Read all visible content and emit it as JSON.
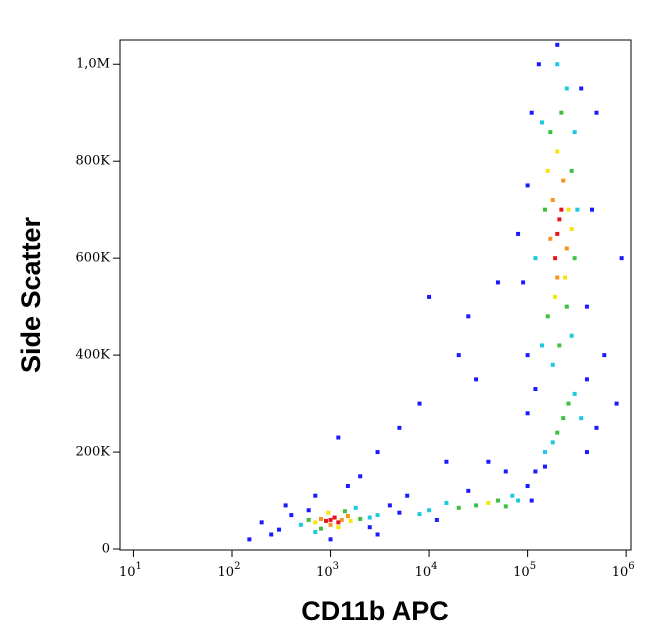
{
  "chart_data": {
    "type": "scatter",
    "xlabel": "CD11b APC",
    "ylabel": "Side Scatter",
    "xscale": "log",
    "xlim": [
      7.3,
      1120000
    ],
    "ylim": [
      -2000,
      1050000
    ],
    "xticks": [
      {
        "value": 10,
        "label": "10",
        "exponent": "1"
      },
      {
        "value": 100,
        "label": "10",
        "exponent": "2"
      },
      {
        "value": 1000,
        "label": "10",
        "exponent": "3"
      },
      {
        "value": 10000,
        "label": "10",
        "exponent": "4"
      },
      {
        "value": 100000,
        "label": "10",
        "exponent": "5"
      },
      {
        "value": 1000000,
        "label": "10",
        "exponent": "6"
      }
    ],
    "yticks": [
      0,
      {
        "value": 200000,
        "label": "200K"
      },
      {
        "value": 400000,
        "label": "400K"
      },
      {
        "value": 600000,
        "label": "600K"
      },
      {
        "value": 800000,
        "label": "800K"
      },
      {
        "value": 1000000,
        "label": "1,0M"
      }
    ],
    "series": [
      {
        "color": "#1a1aff",
        "x": [
          300,
          400,
          250,
          200,
          350,
          4000,
          5000,
          6000,
          12000,
          25000,
          100000,
          120000,
          110000,
          400000,
          500000,
          400000,
          150000,
          100000,
          100000,
          90000,
          100000,
          110000,
          400000,
          450000,
          500000,
          130000,
          350000,
          120000,
          2000,
          3000,
          5000,
          8000,
          20000,
          30000,
          15000,
          1500,
          700,
          150,
          1000,
          3000,
          60000,
          40000,
          600000,
          50000,
          25000,
          200000,
          800000,
          900000,
          80000,
          10000,
          1200,
          600,
          2500
        ],
        "y": [
          40000,
          70000,
          30000,
          55000,
          90000,
          90000,
          75000,
          110000,
          60000,
          120000,
          130000,
          160000,
          100000,
          350000,
          250000,
          200000,
          170000,
          280000,
          400000,
          550000,
          750000,
          900000,
          500000,
          700000,
          900000,
          1000000,
          950000,
          330000,
          150000,
          200000,
          250000,
          300000,
          400000,
          350000,
          180000,
          130000,
          110000,
          20000,
          20000,
          30000,
          160000,
          180000,
          400000,
          550000,
          480000,
          1040000,
          300000,
          600000,
          650000,
          520000,
          230000,
          80000,
          45000
        ]
      },
      {
        "color": "#1ec8e0",
        "x": [
          500,
          2500,
          3000,
          700,
          1800,
          10000,
          8000,
          15000,
          80000,
          70000,
          300000,
          180000,
          150000,
          350000,
          140000,
          300000,
          250000,
          200000,
          120000,
          320000,
          140000,
          280000,
          180000
        ],
        "y": [
          50000,
          65000,
          70000,
          35000,
          85000,
          80000,
          72000,
          95000,
          100000,
          110000,
          320000,
          220000,
          200000,
          270000,
          880000,
          860000,
          950000,
          1000000,
          600000,
          700000,
          420000,
          440000,
          380000
        ]
      },
      {
        "color": "#3fbf3f",
        "x": [
          600,
          2000,
          800,
          1400,
          30000,
          50000,
          60000,
          20000,
          230000,
          260000,
          200000,
          170000,
          280000,
          150000,
          220000,
          300000,
          160000,
          250000,
          210000
        ],
        "y": [
          60000,
          62000,
          42000,
          78000,
          90000,
          100000,
          88000,
          85000,
          270000,
          300000,
          240000,
          860000,
          780000,
          700000,
          900000,
          600000,
          480000,
          500000,
          420000
        ]
      },
      {
        "color": "#f5e50c",
        "x": [
          700,
          1600,
          950,
          1200,
          40000,
          160000,
          260000,
          200000,
          190000,
          240000,
          280000
        ],
        "y": [
          55000,
          58000,
          75000,
          45000,
          95000,
          780000,
          700000,
          820000,
          520000,
          560000,
          660000
        ]
      },
      {
        "color": "#f7941d",
        "x": [
          800,
          1300,
          1000,
          1500,
          180000,
          250000,
          200000,
          230000,
          170000
        ],
        "y": [
          62000,
          60000,
          50000,
          68000,
          720000,
          620000,
          560000,
          760000,
          640000
        ]
      },
      {
        "color": "#e8141c",
        "x": [
          1000,
          1100,
          900,
          1200,
          200000,
          220000,
          190000,
          210000
        ],
        "y": [
          60000,
          65000,
          58000,
          55000,
          650000,
          700000,
          600000,
          680000
        ]
      }
    ]
  }
}
